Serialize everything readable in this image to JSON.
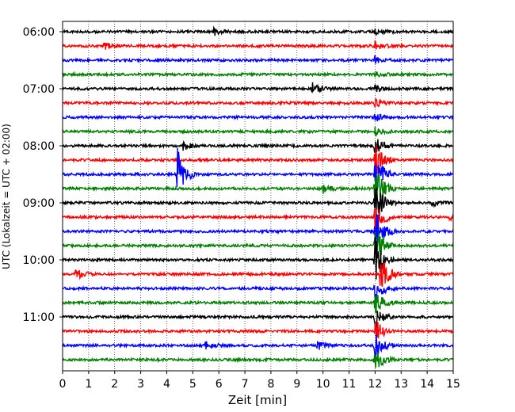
{
  "chart_data": {
    "type": "line",
    "title": "",
    "xlabel": "Zeit  [min]",
    "ylabel": "UTC (Lokalzeit = UTC + 02:00)",
    "xlim": [
      0,
      15
    ],
    "x_ticks": [
      0,
      1,
      2,
      3,
      4,
      5,
      6,
      7,
      8,
      9,
      10,
      11,
      12,
      13,
      14,
      15
    ],
    "y_ticks": [
      "06:00",
      "07:00",
      "08:00",
      "09:00",
      "10:00",
      "11:00"
    ],
    "grid": "vertical dotted",
    "trace_interval_minutes": 15,
    "trace_start": "06:00",
    "colors": [
      "#000000",
      "#ff0000",
      "#0000ff",
      "#008000"
    ],
    "series": [
      {
        "time": "06:00",
        "color": "#000000",
        "events": [
          {
            "t": 5.8,
            "amp": 5
          },
          {
            "t": 12.0,
            "amp": 5
          }
        ]
      },
      {
        "time": "06:15",
        "color": "#ff0000",
        "events": [
          {
            "t": 1.6,
            "amp": 4
          },
          {
            "t": 12.0,
            "amp": 5
          }
        ]
      },
      {
        "time": "06:30",
        "color": "#0000ff",
        "events": [
          {
            "t": 12.0,
            "amp": 5
          }
        ]
      },
      {
        "time": "06:45",
        "color": "#008000",
        "events": [
          {
            "t": 12.0,
            "amp": 5
          }
        ]
      },
      {
        "time": "07:00",
        "color": "#000000",
        "events": [
          {
            "t": 9.6,
            "amp": 8
          },
          {
            "t": 12.0,
            "amp": 5
          }
        ]
      },
      {
        "time": "07:15",
        "color": "#ff0000",
        "events": [
          {
            "t": 12.0,
            "amp": 5
          }
        ]
      },
      {
        "time": "07:30",
        "color": "#0000ff",
        "events": [
          {
            "t": 12.0,
            "amp": 5
          }
        ]
      },
      {
        "time": "07:45",
        "color": "#008000",
        "events": [
          {
            "t": 12.0,
            "amp": 5
          }
        ]
      },
      {
        "time": "08:00",
        "color": "#000000",
        "events": [
          {
            "t": 4.6,
            "amp": 6
          },
          {
            "t": 12.0,
            "amp": 12
          }
        ]
      },
      {
        "time": "08:15",
        "color": "#ff0000",
        "events": [
          {
            "t": 12.0,
            "amp": 30
          }
        ]
      },
      {
        "time": "08:30",
        "color": "#0000ff",
        "events": [
          {
            "t": 4.4,
            "amp": 34
          },
          {
            "t": 12.0,
            "amp": 30
          }
        ]
      },
      {
        "time": "08:45",
        "color": "#008000",
        "events": [
          {
            "t": 10.0,
            "amp": 6
          },
          {
            "t": 12.0,
            "amp": 30
          }
        ]
      },
      {
        "time": "09:00",
        "color": "#000000",
        "events": [
          {
            "t": 14.2,
            "amp": 4
          },
          {
            "t": 12.0,
            "amp": 30
          }
        ]
      },
      {
        "time": "09:15",
        "color": "#ff0000",
        "events": [
          {
            "t": 12.0,
            "amp": 30
          },
          {
            "t": 14.8,
            "amp": 4
          }
        ]
      },
      {
        "time": "09:30",
        "color": "#0000ff",
        "events": [
          {
            "t": 12.0,
            "amp": 30
          }
        ]
      },
      {
        "time": "09:45",
        "color": "#008000",
        "events": [
          {
            "t": 12.0,
            "amp": 30
          }
        ]
      },
      {
        "time": "10:00",
        "color": "#000000",
        "events": [
          {
            "t": 12.0,
            "amp": 30
          }
        ]
      },
      {
        "time": "10:15",
        "color": "#ff0000",
        "events": [
          {
            "t": 0.5,
            "amp": 7
          },
          {
            "t": 12.2,
            "amp": 26
          }
        ]
      },
      {
        "time": "10:30",
        "color": "#0000ff",
        "events": [
          {
            "t": 12.0,
            "amp": 20
          }
        ]
      },
      {
        "time": "10:45",
        "color": "#008000",
        "events": [
          {
            "t": 12.0,
            "amp": 16
          }
        ]
      },
      {
        "time": "11:00",
        "color": "#000000",
        "events": [
          {
            "t": 12.0,
            "amp": 16
          }
        ]
      },
      {
        "time": "11:15",
        "color": "#ff0000",
        "events": [
          {
            "t": 12.0,
            "amp": 16
          }
        ]
      },
      {
        "time": "11:30",
        "color": "#0000ff",
        "events": [
          {
            "t": 5.5,
            "amp": 5
          },
          {
            "t": 9.8,
            "amp": 5
          },
          {
            "t": 12.0,
            "amp": 16
          }
        ]
      },
      {
        "time": "11:45",
        "color": "#008000",
        "events": [
          {
            "t": 12.0,
            "amp": 16
          }
        ]
      }
    ]
  }
}
